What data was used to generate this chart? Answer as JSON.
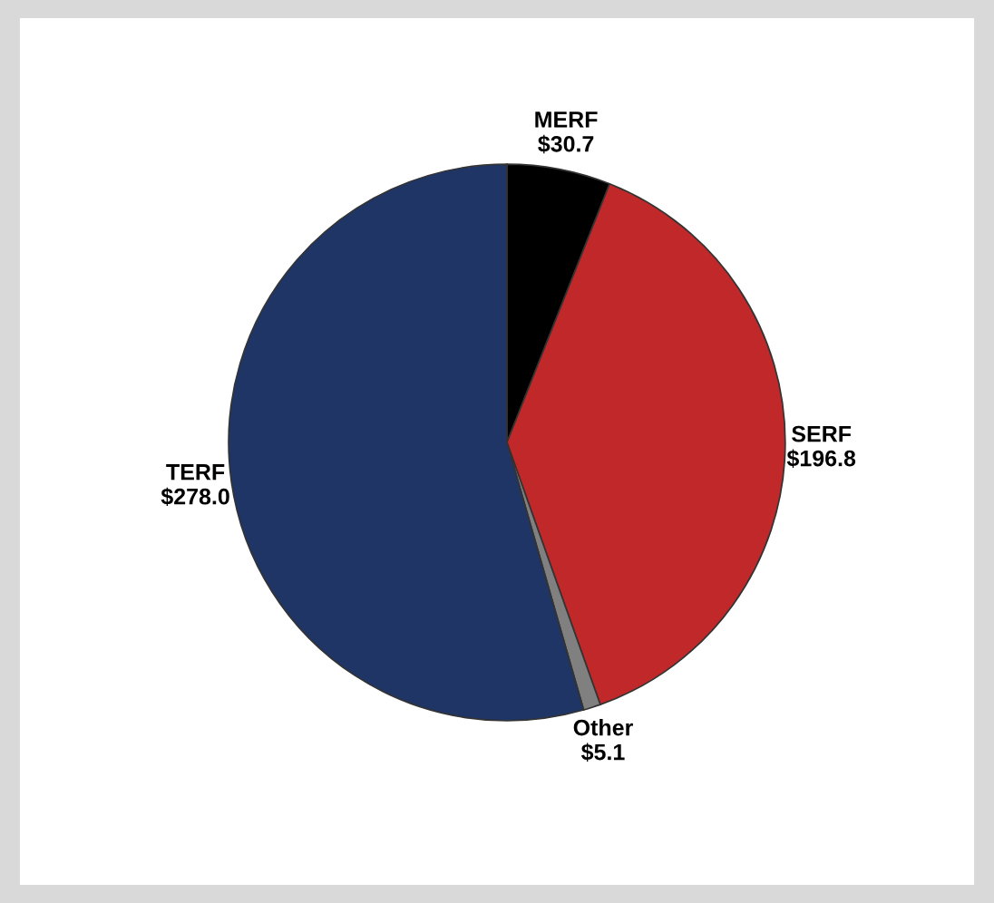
{
  "chart_data": {
    "type": "pie",
    "categories": [
      "MERF",
      "SERF",
      "Other",
      "TERF"
    ],
    "values": [
      30.7,
      196.8,
      5.1,
      278.0
    ],
    "value_labels": [
      "$30.7",
      "$196.8",
      "$5.1",
      "$278.0"
    ],
    "colors": [
      "#000000",
      "#c0282a",
      "#808080",
      "#1f3566"
    ]
  }
}
